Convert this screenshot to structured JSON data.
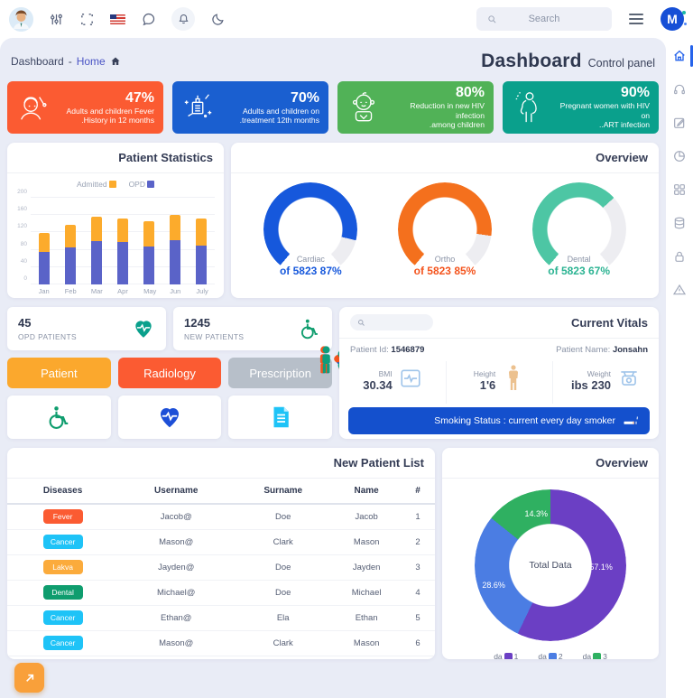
{
  "topbar": {
    "search_placeholder": "Search",
    "icons": [
      "avatar",
      "sliders-icon",
      "fullscreen-icon",
      "us-flag-icon",
      "chat-icon",
      "bell-icon",
      "moon-icon",
      "search-icon",
      "menu-icon",
      "logo"
    ],
    "logo_letter": "M"
  },
  "sidebar": {
    "items": [
      "home",
      "headphones",
      "edit",
      "pie-chart",
      "grid",
      "database",
      "lock",
      "warning"
    ],
    "active": "home",
    "accent_color": "#2563eb"
  },
  "breadcrumb": {
    "root": "Dashboard",
    "separator": "-",
    "current": "Home"
  },
  "page_header": {
    "title": "Dashboard",
    "subtitle": "Control panel"
  },
  "stat_cards": [
    {
      "value": "47%",
      "line1": "Adults and children Fever",
      "line2": ".History in 12 months",
      "color": "#fb5b32",
      "icon": "fever-icon"
    },
    {
      "value": "70%",
      "line1": "Adults and children on",
      "line2": ".treatment 12th months",
      "color": "#1a5fd0",
      "icon": "vaccine-icon"
    },
    {
      "value": "80%",
      "line1": "Reduction in new HIV infection",
      "line2": ".among children",
      "color": "#51b257",
      "icon": "baby-icon"
    },
    {
      "value": "90%",
      "line1": "Pregnant women with HIV on",
      "line2": "..ART infection",
      "color": "#0aa08c",
      "icon": "pregnant-icon"
    }
  ],
  "counters": [
    {
      "value": "45",
      "label": "OPD PATIENTS",
      "icon": "heart-pulse-icon"
    },
    {
      "value": "1245",
      "label": "NEW PATIENTS",
      "icon": "wheelchair-icon"
    }
  ],
  "action_tabs": [
    {
      "label": "Patient",
      "color": "#fba82d",
      "icon": "wheelchair-icon"
    },
    {
      "label": "Radiology",
      "color": "#fb5b32",
      "icon": "heart-pulse-icon"
    },
    {
      "label": "Prescription",
      "color": "#b7bfc9",
      "icon": "document-icon"
    }
  ],
  "vitals": {
    "title": "Current Vitals",
    "patient_id_label": "Patient Id:",
    "patient_id": "1546879",
    "patient_name_label": "Patient Name:",
    "patient_name": "Jonsahn",
    "bmi_label": "BMI",
    "bmi": "30.34",
    "height_label": "Height",
    "height": "1'6",
    "weight_label": "Weight",
    "weight": "ibs 230",
    "smoking_status": "Smoking Status : current every day smoker",
    "banner_color": "#1450cd"
  },
  "patient_list": {
    "title": "New Patient List",
    "columns": [
      "Diseases",
      "Username",
      "Surname",
      "Name",
      "#"
    ],
    "rows": [
      {
        "disease": "Fever",
        "badge_color": "#fb5b32",
        "username": "Jacob@",
        "surname": "Doe",
        "name": "Jacob",
        "num": "1"
      },
      {
        "disease": "Cancer",
        "badge_color": "#1ec3f7",
        "username": "Mason@",
        "surname": "Clark",
        "name": "Mason",
        "num": "2"
      },
      {
        "disease": "Lakva",
        "badge_color": "#fbab3c",
        "username": "Jayden@",
        "surname": "Doe",
        "name": "Jayden",
        "num": "3"
      },
      {
        "disease": "Dental",
        "badge_color": "#0f9d6e",
        "username": "Michael@",
        "surname": "Doe",
        "name": "Michael",
        "num": "4"
      },
      {
        "disease": "Cancer",
        "badge_color": "#1ec3f7",
        "username": "Ethan@",
        "surname": "Ela",
        "name": "Ethan",
        "num": "5"
      },
      {
        "disease": "Cancer",
        "badge_color": "#1ec3f7",
        "username": "Mason@",
        "surname": "Clark",
        "name": "Mason",
        "num": "6"
      }
    ]
  },
  "chart_data": [
    {
      "type": "bar",
      "title": "Patient Statistics",
      "stacked": true,
      "categories": [
        "Jan",
        "Feb",
        "Mar",
        "Apr",
        "May",
        "Jun",
        "July"
      ],
      "series": [
        {
          "name": "OPD",
          "color": "#5a63c8",
          "values": [
            75,
            85,
            100,
            98,
            87,
            103,
            90
          ]
        },
        {
          "name": "Admitted",
          "color": "#fcab2c",
          "values": [
            43,
            53,
            57,
            54,
            59,
            58,
            62
          ]
        }
      ],
      "ylim": [
        0,
        200
      ],
      "yticks": [
        0,
        40,
        80,
        120,
        160,
        200
      ],
      "legend_position": "top",
      "grid": true
    },
    {
      "type": "gauge",
      "title": "Overview",
      "track_color": "#ededf1",
      "items": [
        {
          "label": "Cardiac",
          "value_text": "of 5823 87%",
          "percent": 87,
          "total": 5823,
          "color": "#1658dc",
          "icon": "person-heart-icon"
        },
        {
          "label": "Ortho",
          "value_text": "of 5823 85%",
          "percent": 85,
          "total": 5823,
          "color": "#f4701d",
          "icon": "person-pill-icon"
        },
        {
          "label": "Dental",
          "value_text": "of 5823 67%",
          "percent": 67,
          "total": 5823,
          "color": "#4dc6a4",
          "icon": "person-plusminus-icon"
        }
      ]
    },
    {
      "type": "pie",
      "title": "Overview",
      "center_label": "Total Data",
      "slices": [
        {
          "label": "da1",
          "value": 57.1,
          "pct_label": "57.1%",
          "color": "#6b3fc4"
        },
        {
          "label": "da2",
          "value": 28.6,
          "pct_label": "28.6%",
          "color": "#4b7de3"
        },
        {
          "label": "da3",
          "value": 14.3,
          "pct_label": "14.3%",
          "color": "#2fb061"
        }
      ],
      "legend": [
        {
          "pre": "da",
          "num": "1"
        },
        {
          "pre": "da",
          "num": "2"
        },
        {
          "pre": "da",
          "num": "3"
        }
      ],
      "legend_position": "bottom"
    }
  ]
}
